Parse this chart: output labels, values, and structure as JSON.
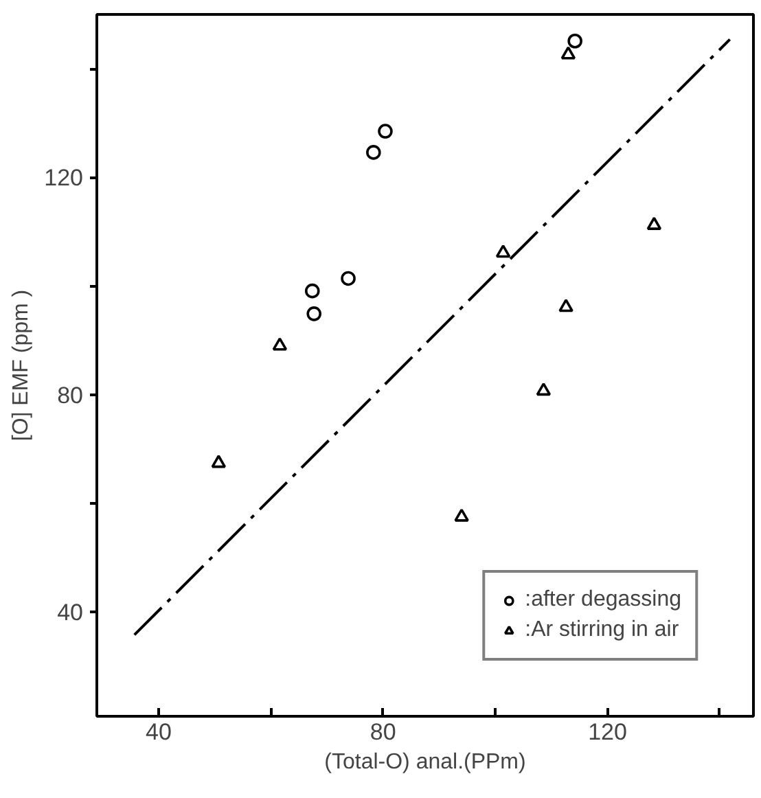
{
  "chart_data": {
    "type": "scatter",
    "xlabel": "(Total-O) anal.(PPm)",
    "ylabel": "[O] EMF (ppm )",
    "xlim": [
      29,
      146
    ],
    "ylim": [
      20.8,
      150
    ],
    "xticks": [
      40,
      {
        "value": 60,
        "label": null
      },
      80,
      {
        "value": 100,
        "label": null
      },
      120,
      {
        "value": 140,
        "label": null
      }
    ],
    "yticks": [
      40,
      {
        "value": 60,
        "label": null
      },
      80,
      {
        "value": 100,
        "label": null
      },
      120,
      {
        "value": 140,
        "label": null
      }
    ],
    "grid": false,
    "legend": "bottom right",
    "series": [
      {
        "name": ":after degassing",
        "color": "#000000",
        "marker": "circle",
        "x": [
          114.2,
          80.4,
          78.3,
          73.8,
          67.4,
          67.7
        ],
        "values": [
          145.1,
          128.5,
          124.6,
          101.4,
          99.1,
          94.9
        ]
      },
      {
        "name": ":Ar stirring in air",
        "color": "#000000",
        "marker": "triangle",
        "x": [
          113.0,
          128.3,
          101.4,
          112.6,
          61.6,
          108.6,
          50.7,
          94.0
        ],
        "values": [
          142.6,
          111.2,
          106.1,
          96.1,
          89.0,
          80.7,
          67.4,
          57.5
        ]
      },
      {
        "type": "line",
        "color": "#000000",
        "line_style": "dashdot",
        "x": [
          35.7,
          141.8
        ],
        "values": [
          35.8,
          145.4
        ]
      }
    ]
  }
}
